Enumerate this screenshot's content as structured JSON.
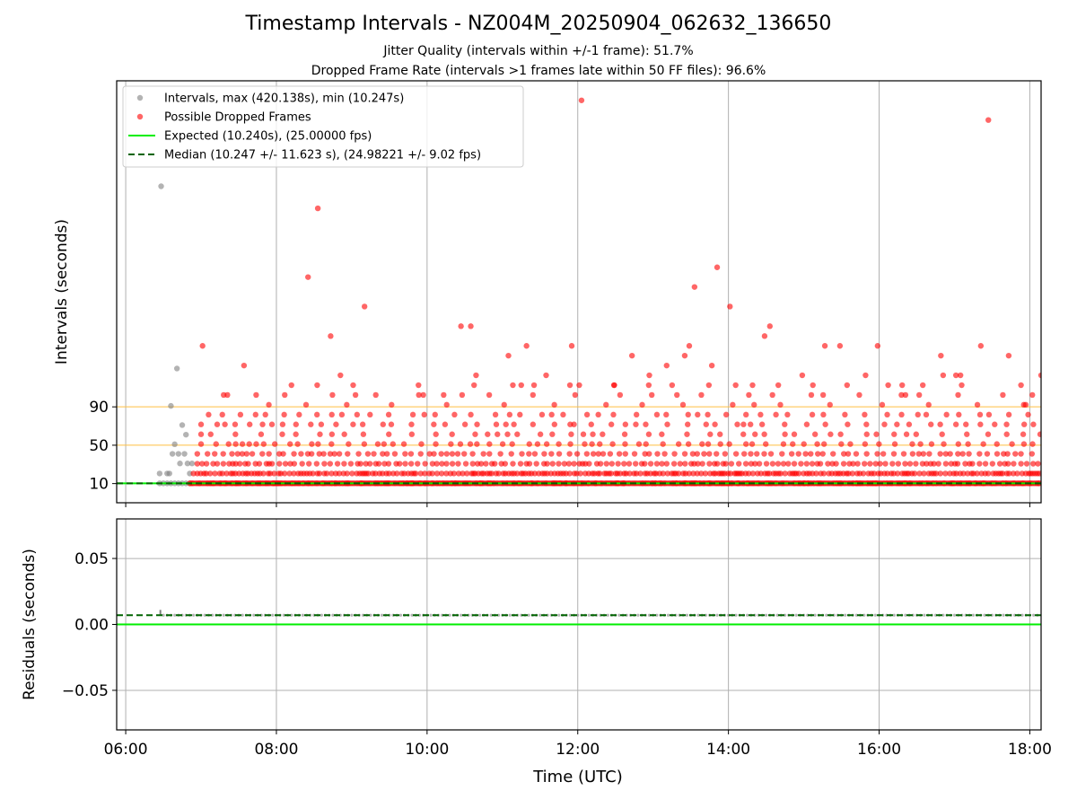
{
  "header": {
    "title": "Timestamp Intervals - NZ004M_20250904_062632_136650",
    "subtitle_1": "Jitter Quality (intervals within +/-1 frame): 51.7%",
    "subtitle_2": "Dropped Frame Rate (intervals >1 frames late within 50 FF files): 96.6%"
  },
  "chart_data": [
    {
      "type": "scatter",
      "panel": "intervals",
      "ylabel": "Intervals (seconds)",
      "y_ticks": [
        10,
        50,
        90
      ],
      "ylim": [
        -10,
        430
      ],
      "xlim_hours": [
        5.88,
        18.15
      ],
      "x_ticks_hours": [
        6,
        8,
        10,
        12,
        14,
        16,
        18
      ],
      "grid": "vertical",
      "legend_placement": "upper-left",
      "threshold_lines": {
        "values": [
          50,
          90
        ],
        "color": "#ffbf40"
      },
      "legend": [
        {
          "label": "Intervals, max (420.138s), min (10.247s)",
          "kind": "marker",
          "color": "#808080"
        },
        {
          "label": "Possible Dropped Frames",
          "kind": "marker",
          "color": "#ff0000"
        },
        {
          "label": "Expected (10.240s), (25.00000 fps)",
          "kind": "solid-line",
          "color": "#00ee00"
        },
        {
          "label": "Median (10.247 +/- 11.623 s), (24.98221 +/- 9.02 fps)",
          "kind": "dashed-line",
          "color": "#006400"
        }
      ],
      "expected_value": 10.24,
      "median_value": 10.247,
      "series": [
        {
          "name": "Intervals, max (420.138s), min (10.247s)",
          "color": "#808080",
          "points": [
            [
              6.45,
              10.25
            ],
            [
              6.5,
              10.25
            ],
            [
              6.55,
              10.25
            ],
            [
              6.6,
              10.25
            ],
            [
              6.65,
              10.25
            ],
            [
              6.7,
              10.25
            ],
            [
              6.75,
              10.25
            ],
            [
              6.8,
              10.25
            ],
            [
              6.85,
              10.25
            ],
            [
              6.45,
              20.5
            ],
            [
              6.55,
              20.5
            ],
            [
              6.58,
              20.5
            ],
            [
              6.62,
              41
            ],
            [
              6.65,
              51
            ],
            [
              6.7,
              41
            ],
            [
              6.72,
              31
            ],
            [
              6.75,
              71
            ],
            [
              6.78,
              41
            ],
            [
              6.8,
              61
            ],
            [
              6.82,
              31
            ],
            [
              6.85,
              20.5
            ],
            [
              6.88,
              31
            ],
            [
              6.6,
              91
            ],
            [
              6.68,
              130
            ],
            [
              6.47,
              320
            ]
          ]
        },
        {
          "name": "Possible Dropped Frames",
          "color": "#ff0000",
          "seed": 12345,
          "dense_rows": [
            {
              "y": 10.25,
              "x_from": 6.85,
              "x_to": 18.15,
              "step": 0.018
            },
            {
              "y": 20.5,
              "x_from": 6.9,
              "x_to": 18.15,
              "step": 0.045
            },
            {
              "y": 30.7,
              "x_from": 6.95,
              "x_to": 18.15,
              "step": 0.07
            },
            {
              "y": 41,
              "x_from": 6.95,
              "x_to": 18.15,
              "step": 0.1
            },
            {
              "y": 51.2,
              "x_from": 7.0,
              "x_to": 18.15,
              "step": 0.16
            },
            {
              "y": 61.4,
              "x_from": 7.0,
              "x_to": 18.15,
              "step": 0.24
            },
            {
              "y": 71.7,
              "x_from": 7.0,
              "x_to": 18.15,
              "step": 0.2
            },
            {
              "y": 81.9,
              "x_from": 7.1,
              "x_to": 18.15,
              "step": 0.22
            },
            {
              "y": 92.2,
              "x_from": 7.9,
              "x_to": 18.1,
              "step": 0.55
            },
            {
              "y": 102.4,
              "x_from": 7.3,
              "x_to": 18.1,
              "step": 0.45
            },
            {
              "y": 112.6,
              "x_from": 8.2,
              "x_to": 18.0,
              "step": 0.6
            }
          ],
          "points": [
            [
              7.02,
              153.6
            ],
            [
              7.57,
              133.1
            ],
            [
              7.35,
              102.4
            ],
            [
              8.42,
              225.3
            ],
            [
              8.55,
              297
            ],
            [
              8.72,
              163.8
            ],
            [
              9.17,
              194.6
            ],
            [
              10.45,
              174.1
            ],
            [
              10.58,
              174.1
            ],
            [
              10.65,
              122.9
            ],
            [
              11.08,
              143.4
            ],
            [
              11.25,
              112.6
            ],
            [
              11.32,
              153.6
            ],
            [
              11.42,
              112.6
            ],
            [
              11.58,
              122.9
            ],
            [
              11.92,
              153.6
            ],
            [
              12.02,
              112.6
            ],
            [
              12.05,
              409.6
            ],
            [
              12.48,
              112.6
            ],
            [
              12.72,
              143.4
            ],
            [
              12.95,
              122.9
            ],
            [
              13.18,
              133.1
            ],
            [
              13.42,
              143.4
            ],
            [
              13.48,
              153.6
            ],
            [
              13.55,
              215
            ],
            [
              13.78,
              133.1
            ],
            [
              13.85,
              235.5
            ],
            [
              14.02,
              194.6
            ],
            [
              14.32,
              112.6
            ],
            [
              14.48,
              163.8
            ],
            [
              14.55,
              174.1
            ],
            [
              14.98,
              122.9
            ],
            [
              15.28,
              153.6
            ],
            [
              15.48,
              153.6
            ],
            [
              15.82,
              122.9
            ],
            [
              15.98,
              153.6
            ],
            [
              16.12,
              112.6
            ],
            [
              16.58,
              112.6
            ],
            [
              16.82,
              143.4
            ],
            [
              16.85,
              122.9
            ],
            [
              17.02,
              122.9
            ],
            [
              17.08,
              122.9
            ],
            [
              17.35,
              153.6
            ],
            [
              17.45,
              389.1
            ],
            [
              17.72,
              143.4
            ],
            [
              18.15,
              122.9
            ],
            [
              8.85,
              122.9
            ],
            [
              9.05,
              102.4
            ],
            [
              9.95,
              102.4
            ],
            [
              10.22,
              102.4
            ],
            [
              11.95,
              71.7
            ],
            [
              14.2,
              71.7
            ],
            [
              15.1,
              102.4
            ],
            [
              16.35,
              102.4
            ],
            [
              17.92,
              92.2
            ]
          ]
        }
      ]
    },
    {
      "type": "line",
      "panel": "residuals",
      "xlabel": "Time (UTC)",
      "ylabel": "Residuals (seconds)",
      "ylim": [
        -0.08,
        0.08
      ],
      "y_ticks": [
        -0.05,
        0.0,
        0.05
      ],
      "y_tick_labels": [
        "−0.05",
        "0.00",
        "0.05"
      ],
      "xlim_hours": [
        5.88,
        18.15
      ],
      "x_ticks_hours": [
        6,
        8,
        10,
        12,
        14,
        16,
        18
      ],
      "x_tick_labels": [
        "06:00",
        "08:00",
        "10:00",
        "12:00",
        "14:00",
        "16:00",
        "18:00"
      ],
      "grid": "both",
      "expected_residual": 0.0,
      "median_residual": 0.007,
      "residual_band": 0.007,
      "residual_spike": [
        6.46,
        0.011
      ]
    }
  ]
}
